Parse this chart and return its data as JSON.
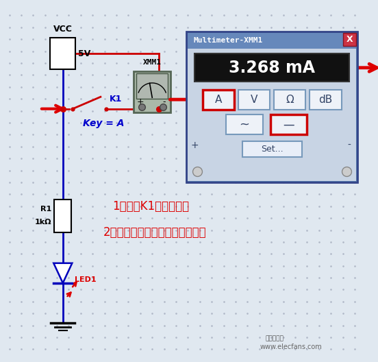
{
  "bg_color": "#e0e8f0",
  "dot_color": "#b0b8c8",
  "title": "Multimeter-XMM1",
  "display_value": "3.268 mA",
  "buttons": [
    "A",
    "V",
    "Ω",
    "dB"
  ],
  "vcc_label": "VCC",
  "vcc_value": "5V",
  "xmm_label": "XMM1",
  "k1_label": "K1",
  "key_label": "Key = A",
  "r1_label": "R1",
  "r1_value": "1kΩ",
  "led_label": "LED1",
  "text1": "1、开关K1必须打开。",
  "text2": "2、数字万用表选择直流电流档。",
  "red": "#dd0000",
  "blue": "#0000cc",
  "wire_red": "#cc0000",
  "wire_blue": "#0000bb",
  "multimeter_outer": "#5577aa",
  "multimeter_bg": "#c8d4e4",
  "multimeter_title_bg": "#6688bb",
  "display_bg": "#111111",
  "display_text": "#ffffff",
  "button_border_red": "#cc0000",
  "btn_border_normal": "#7799bb",
  "xmm_face": "#aab8a8",
  "xmm_border": "#556655",
  "watermark": "www.elecfans.com",
  "watermark_logo": "电子发烧友"
}
